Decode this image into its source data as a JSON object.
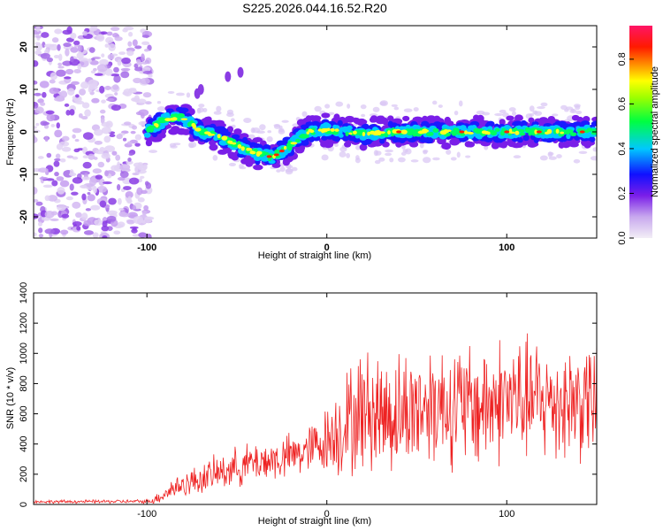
{
  "title": "S225.2026.044.16.52.R20",
  "chart_data": [
    {
      "type": "heatmap",
      "xlabel": "Height of straight line (km)",
      "ylabel": "Frequency (Hz)",
      "xlim": [
        -163,
        150
      ],
      "ylim": [
        -25,
        25
      ],
      "xticks": [
        -100,
        0,
        100
      ],
      "yticks": [
        -20,
        -10,
        0,
        10,
        20
      ],
      "colorbar": {
        "label": "Normalized spectral amplitude",
        "range": [
          0,
          0.95
        ],
        "ticks": [
          "0.0",
          "0.2",
          "0.4",
          "0.6",
          "0.8"
        ],
        "tick_values": [
          0.0,
          0.2,
          0.4,
          0.6,
          0.8
        ]
      },
      "ridge": {
        "x": [
          -100,
          -90,
          -80,
          -70,
          -60,
          -50,
          -40,
          -30,
          -20,
          -10,
          0,
          10,
          20,
          40,
          60,
          80,
          100,
          120,
          150
        ],
        "freq": [
          0,
          3,
          3.5,
          0,
          -1,
          -3,
          -5,
          -6,
          -3,
          0,
          0.5,
          0,
          -0.5,
          0,
          0,
          0,
          0,
          0,
          0
        ]
      }
    },
    {
      "type": "line",
      "xlabel": "Height of straight line (km)",
      "ylabel": "SNR (10 * v/v)",
      "xlim": [
        -163,
        150
      ],
      "ylim": [
        0,
        1400
      ],
      "xticks": [
        -100,
        0,
        100
      ],
      "yticks": [
        0,
        200,
        400,
        600,
        800,
        1000,
        1200,
        1400
      ],
      "series": [
        {
          "name": "SNR",
          "color": "#ff3333",
          "envelope": {
            "x": [
              -163,
              -100,
              -95,
              -85,
              -70,
              -55,
              -40,
              -25,
              -10,
              0,
              10,
              20,
              40,
              60,
              80,
              100,
              120,
              150
            ],
            "mean": [
              18,
              20,
              35,
              110,
              170,
              230,
              280,
              300,
              360,
              430,
              520,
              620,
              600,
              680,
              640,
              700,
              680,
              690
            ],
            "spread": [
              12,
              15,
              40,
              90,
              120,
              150,
              160,
              170,
              190,
              260,
              420,
              480,
              480,
              480,
              500,
              500,
              480,
              470
            ]
          }
        }
      ]
    }
  ]
}
